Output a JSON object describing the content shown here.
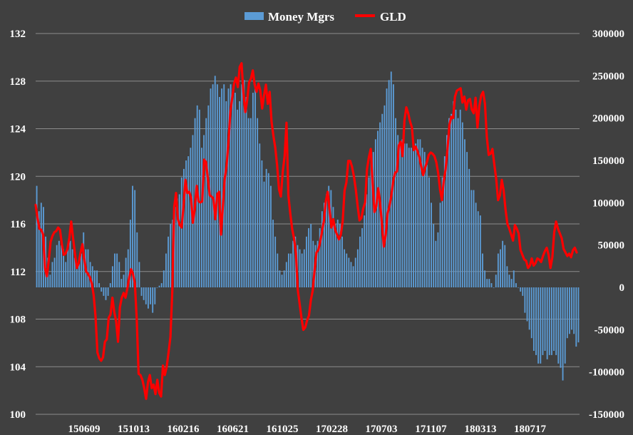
{
  "chart_data": {
    "type": "bar+line",
    "title": "",
    "xlabel": "",
    "ylabel_left": "",
    "ylabel_right": "",
    "legend_position": "top-center",
    "grid": "horizontal",
    "colors": {
      "background": "#404040",
      "bar": "#5b9bd5",
      "line": "#ff0000",
      "grid": "#8c8c8c",
      "text": "#ffffff"
    },
    "y_left": {
      "range": [
        100,
        132
      ],
      "ticks": [
        "100",
        "104",
        "108",
        "112",
        "116",
        "120",
        "124",
        "128",
        "132"
      ]
    },
    "y_right": {
      "range": [
        -150000,
        300000
      ],
      "ticks": [
        "-150000",
        "-100000",
        "-50000",
        "0",
        "50000",
        "100000",
        "150000",
        "200000",
        "250000",
        "300000"
      ]
    },
    "x_tick_labels": [
      "150609",
      "151013",
      "160216",
      "160621",
      "161025",
      "170228",
      "170703",
      "171107",
      "180313",
      "180717"
    ],
    "series": [
      {
        "name": "Money Mgrs",
        "axis": "right",
        "kind": "bar",
        "values": [
          120000,
          90000,
          100000,
          95000,
          60000,
          35000,
          15000,
          30000,
          35000,
          50000,
          55000,
          50000,
          45000,
          30000,
          50000,
          55000,
          45000,
          35000,
          25000,
          35000,
          40000,
          65000,
          45000,
          45000,
          30000,
          25000,
          20000,
          20000,
          5000,
          -5000,
          -10000,
          -15000,
          -10000,
          5000,
          25000,
          40000,
          40000,
          30000,
          10000,
          15000,
          35000,
          45000,
          80000,
          120000,
          115000,
          65000,
          30000,
          -10000,
          -15000,
          -20000,
          -25000,
          -20000,
          -30000,
          -20000,
          0,
          2000,
          5000,
          20000,
          40000,
          60000,
          75000,
          80000,
          95000,
          105000,
          110000,
          130000,
          140000,
          150000,
          155000,
          165000,
          180000,
          200000,
          215000,
          210000,
          165000,
          180000,
          200000,
          215000,
          235000,
          240000,
          250000,
          240000,
          225000,
          235000,
          240000,
          220000,
          235000,
          240000,
          235000,
          230000,
          210000,
          220000,
          240000,
          245000,
          225000,
          200000,
          200000,
          230000,
          240000,
          200000,
          170000,
          150000,
          125000,
          140000,
          135000,
          120000,
          80000,
          60000,
          40000,
          20000,
          15000,
          20000,
          30000,
          40000,
          40000,
          55000,
          60000,
          50000,
          45000,
          40000,
          45000,
          60000,
          70000,
          75000,
          55000,
          50000,
          55000,
          70000,
          90000,
          100000,
          110000,
          120000,
          115000,
          95000,
          75000,
          80000,
          75000,
          60000,
          45000,
          40000,
          35000,
          30000,
          25000,
          35000,
          45000,
          60000,
          70000,
          85000,
          110000,
          130000,
          150000,
          160000,
          175000,
          185000,
          195000,
          205000,
          215000,
          235000,
          245000,
          255000,
          240000,
          200000,
          180000,
          170000,
          175000,
          170000,
          170000,
          165000,
          165000,
          165000,
          170000,
          175000,
          175000,
          165000,
          160000,
          145000,
          130000,
          100000,
          75000,
          55000,
          65000,
          100000,
          130000,
          155000,
          180000,
          200000,
          205000,
          220000,
          210000,
          200000,
          210000,
          195000,
          175000,
          160000,
          140000,
          115000,
          115000,
          100000,
          90000,
          85000,
          40000,
          20000,
          10000,
          10000,
          5000,
          0,
          15000,
          40000,
          45000,
          55000,
          50000,
          25000,
          15000,
          10000,
          20000,
          5000,
          0,
          -5000,
          -10000,
          -30000,
          -40000,
          -50000,
          -60000,
          -75000,
          -80000,
          -90000,
          -90000,
          -80000,
          -75000,
          -85000,
          -80000,
          -80000,
          -75000,
          -80000,
          -90000,
          -95000,
          -110000,
          -90000,
          -60000,
          -55000,
          -50000,
          -55000,
          -70000,
          -65000
        ]
      },
      {
        "name": "GLD",
        "axis": "left",
        "kind": "line",
        "values": [
          117.6,
          116.5,
          115.6,
          115.5,
          115.1,
          112.3,
          111.6,
          112.9,
          114.5,
          115.0,
          115.3,
          115.4,
          115.7,
          115.5,
          114.3,
          113.4,
          113.5,
          113.9,
          114.8,
          116.2,
          114.8,
          113.5,
          112.3,
          112.7,
          113.6,
          114.3,
          113.0,
          112.0,
          111.8,
          111.5,
          111.0,
          110.0,
          108.2,
          105.2,
          104.7,
          104.5,
          104.8,
          106.1,
          106.3,
          108.1,
          108.4,
          109.8,
          108.6,
          107.8,
          106.1,
          109.0,
          109.8,
          110.2,
          109.8,
          110.6,
          111.5,
          112.2,
          111.8,
          111.0,
          108.0,
          103.4,
          103.3,
          102.9,
          102.2,
          101.3,
          102.7,
          103.3,
          102.2,
          102.5,
          101.7,
          102.9,
          101.8,
          101.5,
          104.1,
          103.3,
          104.0,
          105.2,
          106.5,
          110.4,
          117.4,
          118.6,
          116.4,
          115.9,
          115.7,
          117.5,
          119.7,
          118.6,
          118.7,
          118.2,
          116.1,
          117.3,
          119.2,
          117.9,
          117.8,
          117.9,
          121.4,
          121.2,
          119.8,
          118.4,
          118.3,
          118.1,
          116.4,
          118.5,
          118.7,
          115.1,
          117.4,
          119.8,
          120.9,
          122.9,
          125.4,
          126.6,
          127.8,
          128.3,
          127.5,
          129.2,
          129.5,
          127.0,
          125.4,
          126.4,
          127.9,
          128.2,
          128.9,
          127.7,
          127.1,
          127.8,
          127.2,
          125.7,
          126.8,
          127.7,
          126.1,
          127.1,
          124.6,
          123.4,
          122.4,
          120.9,
          118.9,
          118.3,
          120.4,
          121.7,
          124.5,
          118.4,
          116.9,
          115.6,
          114.8,
          113.6,
          110.5,
          109.3,
          108.1,
          107.1,
          107.3,
          107.9,
          108.3,
          109.6,
          110.4,
          112.1,
          113.6,
          113.8,
          114.5,
          115.4,
          116.3,
          117.9,
          118.7,
          117.2,
          115.7,
          116.4,
          115.5,
          115.1,
          114.7,
          115.1,
          116.2,
          118.8,
          119.5,
          121.3,
          121.3,
          120.8,
          120.0,
          118.9,
          117.5,
          116.3,
          116.5,
          117.3,
          117.8,
          120.6,
          121.6,
          122.3,
          119.4,
          117.0,
          117.5,
          119.0,
          117.8,
          115.9,
          114.1,
          115.1,
          116.9,
          117.5,
          118.4,
          119.6,
          120.3,
          120.4,
          122.6,
          122.9,
          121.7,
          124.7,
          125.8,
          125.3,
          124.6,
          124.1,
          122.2,
          122.5,
          122.1,
          121.6,
          120.8,
          120.1,
          120.7,
          121.2,
          121.8,
          122.0,
          121.9,
          121.7,
          121.2,
          120.3,
          118.9,
          118.0,
          119.6,
          120.6,
          122.3,
          124.3,
          125.0,
          124.9,
          126.7,
          127.2,
          127.3,
          127.4,
          126.2,
          126.7,
          125.6,
          126.4,
          126.5,
          125.6,
          125.3,
          126.6,
          124.1,
          125.9,
          126.8,
          127.1,
          126.1,
          123.3,
          121.8,
          121.9,
          122.3,
          121.0,
          119.8,
          118.0,
          118.4,
          119.7,
          118.8,
          117.2,
          116.0,
          115.6,
          115.1,
          114.6,
          115.9,
          115.6,
          115.2,
          113.8,
          113.4,
          113.0,
          112.9,
          112.3,
          112.5,
          113.1,
          112.5,
          112.7,
          113.1,
          113.0,
          112.8,
          113.3,
          113.7,
          114.0,
          113.4,
          112.3,
          113.2,
          115.3,
          116.2,
          115.6,
          115.2,
          114.8,
          113.9,
          113.6,
          113.3,
          113.5,
          113.2,
          113.8,
          114.0,
          113.6
        ]
      }
    ]
  },
  "legend": [
    {
      "label": "Money Mgrs"
    },
    {
      "label": "GLD"
    }
  ]
}
